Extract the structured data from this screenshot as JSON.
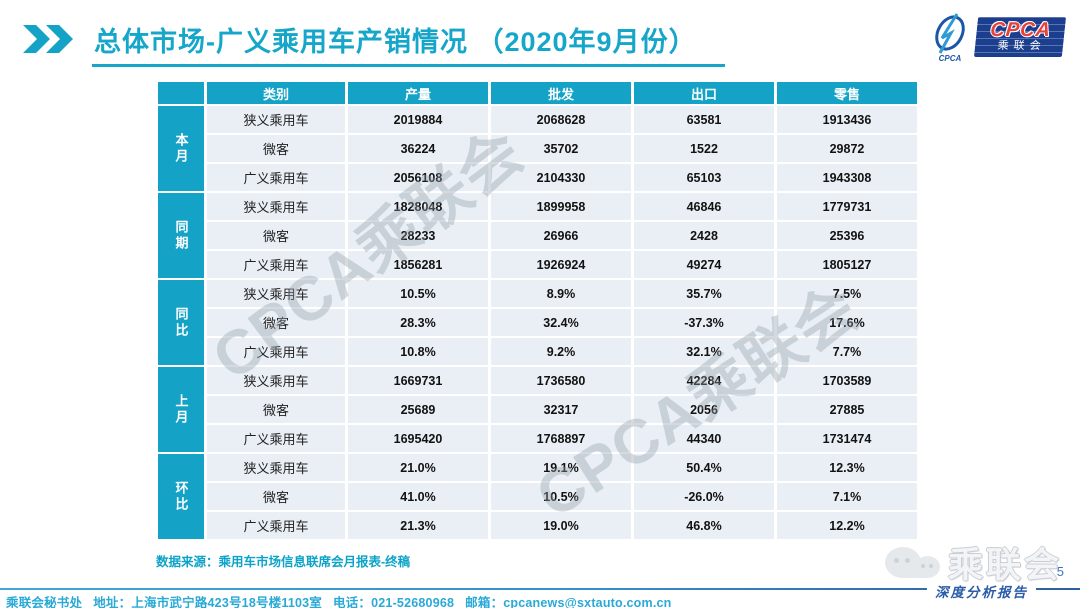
{
  "header": {
    "title": "总体市场-广义乘用车产销情况 （2020年9月份） ",
    "logo": {
      "swoosh_caption": "CPCA",
      "box_title": "CPCA",
      "box_subtitle": "乘联会"
    }
  },
  "table": {
    "columns": [
      "类别",
      "产量",
      "批发",
      "出口",
      "零售"
    ],
    "groups": [
      {
        "label": "本月",
        "rows": [
          {
            "category": "狭义乘用车",
            "values": [
              "2019884",
              "2068628",
              "63581",
              "1913436"
            ]
          },
          {
            "category": "微客",
            "values": [
              "36224",
              "35702",
              "1522",
              "29872"
            ]
          },
          {
            "category": "广义乘用车",
            "values": [
              "2056108",
              "2104330",
              "65103",
              "1943308"
            ]
          }
        ]
      },
      {
        "label": "同期",
        "rows": [
          {
            "category": "狭义乘用车",
            "values": [
              "1828048",
              "1899958",
              "46846",
              "1779731"
            ]
          },
          {
            "category": "微客",
            "values": [
              "28233",
              "26966",
              "2428",
              "25396"
            ]
          },
          {
            "category": "广义乘用车",
            "values": [
              "1856281",
              "1926924",
              "49274",
              "1805127"
            ]
          }
        ]
      },
      {
        "label": "同比",
        "rows": [
          {
            "category": "狭义乘用车",
            "values": [
              "10.5%",
              "8.9%",
              "35.7%",
              "7.5%"
            ]
          },
          {
            "category": "微客",
            "values": [
              "28.3%",
              "32.4%",
              "-37.3%",
              "17.6%"
            ]
          },
          {
            "category": "广义乘用车",
            "values": [
              "10.8%",
              "9.2%",
              "32.1%",
              "7.7%"
            ]
          }
        ]
      },
      {
        "label": "上月",
        "rows": [
          {
            "category": "狭义乘用车",
            "values": [
              "1669731",
              "1736580",
              "42284",
              "1703589"
            ]
          },
          {
            "category": "微客",
            "values": [
              "25689",
              "32317",
              "2056",
              "27885"
            ]
          },
          {
            "category": "广义乘用车",
            "values": [
              "1695420",
              "1768897",
              "44340",
              "1731474"
            ]
          }
        ]
      },
      {
        "label": "环比",
        "rows": [
          {
            "category": "狭义乘用车",
            "values": [
              "21.0%",
              "19.1%",
              "50.4%",
              "12.3%"
            ]
          },
          {
            "category": "微客",
            "values": [
              "41.0%",
              "10.5%",
              "-26.0%",
              "7.1%"
            ]
          },
          {
            "category": "广义乘用车",
            "values": [
              "21.3%",
              "19.0%",
              "46.8%",
              "12.2%"
            ]
          }
        ]
      }
    ]
  },
  "source_note": "数据来源：乘用车市场信息联席会月报表-终稿",
  "watermarks": {
    "diagonal_text": "CPCA乘联会",
    "wechat_label": "乘联会"
  },
  "footer": {
    "contact": "乘联会秘书处   地址：上海市武宁路423号18号楼1103室   电话：021-52680968   邮箱：cpcanews@sxtauto.com.cn",
    "report_label": "深度分析报告",
    "page_number": "5"
  },
  "colors": {
    "accent_cyan": "#14A3C6",
    "title_cyan": "#16A6C9",
    "row_bg": "#E9EFF5",
    "logo_navy": "#1C3E8E",
    "logo_red": "#E8413C",
    "footer_cyan": "#29A9D6",
    "report_blue": "#2A5CA8",
    "page_blue": "#4472C4",
    "watermark_gray": "#949EA8"
  }
}
